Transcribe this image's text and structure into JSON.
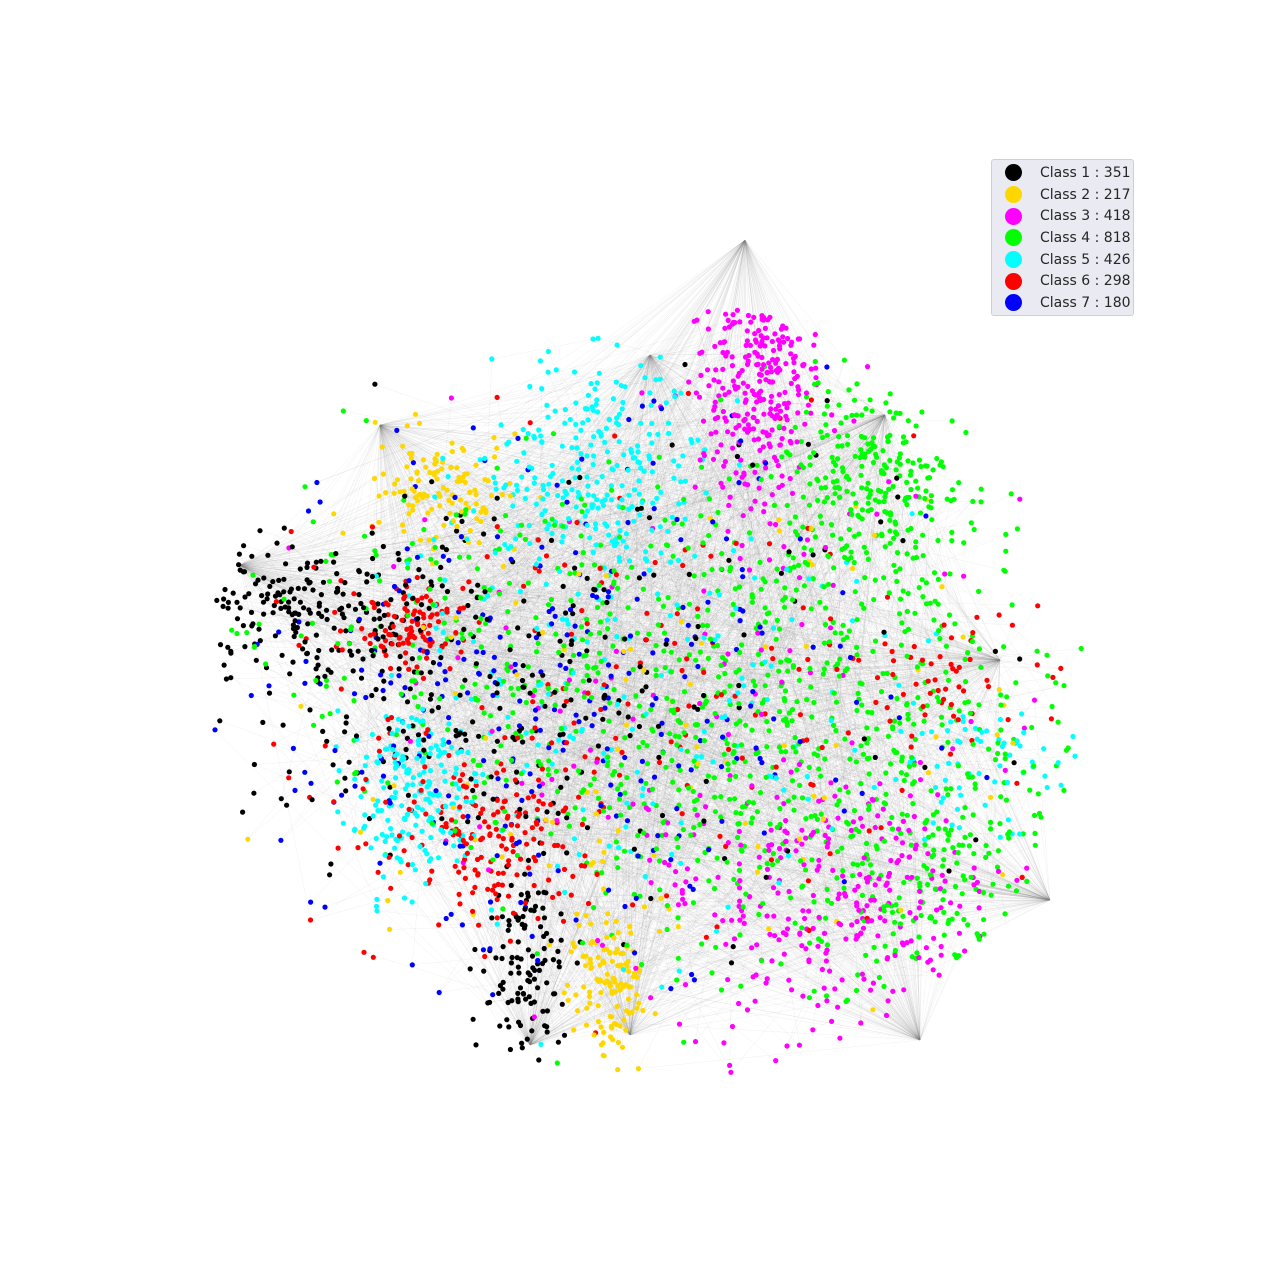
{
  "chart_data": {
    "type": "scatter",
    "kind": "network-graph",
    "axes_visible": false,
    "grid": false,
    "legend_position": "top-right",
    "edge_color": "#808080",
    "classes": [
      {
        "label": "Class 1 : 351",
        "count": 351,
        "color": "#000000"
      },
      {
        "label": "Class 2 : 217",
        "count": 217,
        "color": "#ffd700"
      },
      {
        "label": "Class 3 : 418",
        "count": 418,
        "color": "#ff00ff"
      },
      {
        "label": "Class 4 : 818",
        "count": 818,
        "color": "#00ff00"
      },
      {
        "label": "Class 5 : 426",
        "count": 426,
        "color": "#00ffff"
      },
      {
        "label": "Class 6 : 298",
        "count": 298,
        "color": "#ff0000"
      },
      {
        "label": "Class 7 : 180",
        "count": 180,
        "color": "#0000ff"
      }
    ]
  }
}
